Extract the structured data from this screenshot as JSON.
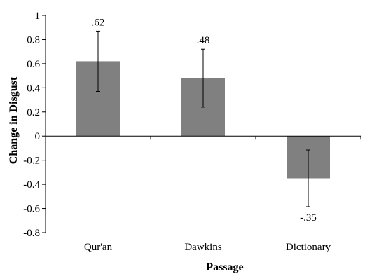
{
  "chart_data": {
    "type": "bar",
    "categories": [
      "Qur'an",
      "Dawkins",
      "Dictionary"
    ],
    "values": [
      0.62,
      0.48,
      -0.35
    ],
    "data_labels": [
      ".62",
      ".48",
      "-.35"
    ],
    "error": [
      0.25,
      0.24,
      0.235
    ],
    "xlabel": "Passage",
    "ylabel": "Change in Disgust",
    "ylim": [
      -0.8,
      1
    ],
    "yticks": [
      -0.8,
      -0.6,
      -0.4,
      -0.2,
      0,
      0.2,
      0.4,
      0.6,
      0.8,
      1
    ],
    "ytick_labels": [
      "-0.8",
      "-0.6",
      "-0.4",
      "-0.2",
      "0",
      "0.2",
      "0.4",
      "0.6",
      "0.8",
      "1"
    ],
    "bar_color": "#808080",
    "grid": false
  }
}
